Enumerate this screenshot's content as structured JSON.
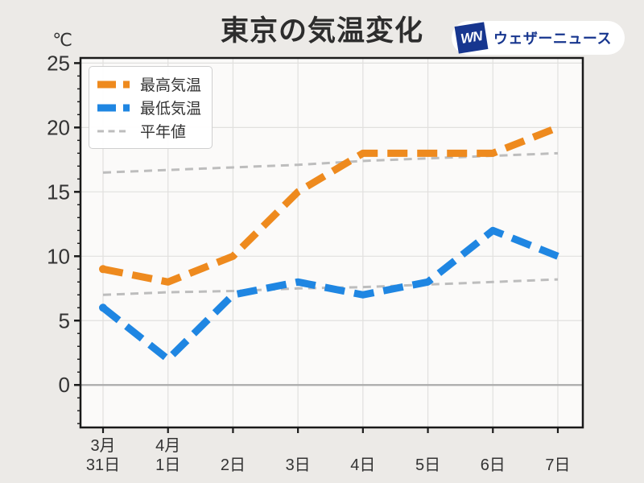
{
  "title": "東京の気温変化",
  "y_axis_unit": "℃",
  "logo": {
    "mark": "WN",
    "text": "ウェザーニュース",
    "brand_color": "#17368F"
  },
  "colors": {
    "page_background": "#ECEAE7",
    "plot_background": "#FBFAF9",
    "axis": "#1A1A1A",
    "grid": "#E1E0DE",
    "zero_line": "#ABABAB",
    "tick_label": "#333333"
  },
  "chart_data": {
    "type": "line",
    "title": "東京の気温変化",
    "x_tick_labels": [
      [
        "3月",
        "31日"
      ],
      [
        "4月",
        "1日"
      ],
      [
        "2日"
      ],
      [
        "3日"
      ],
      [
        "4日"
      ],
      [
        "5日"
      ],
      [
        "6日"
      ],
      [
        "7日"
      ]
    ],
    "yticks": [
      0,
      5,
      10,
      15,
      20,
      25
    ],
    "ylim": [
      -3.3,
      25.4
    ],
    "ylabel": "℃",
    "grid": true,
    "legend_position": "upper-left",
    "series": [
      {
        "name": "最高気温",
        "color": "#EE8A1E",
        "line_style": "thick-dashed",
        "values": [
          9,
          8,
          10,
          15,
          18,
          18,
          18,
          20
        ]
      },
      {
        "name": "最低気温",
        "color": "#1F86E2",
        "line_style": "thick-dashed",
        "values": [
          6,
          2,
          7,
          8,
          7,
          8,
          12,
          10
        ]
      },
      {
        "name": "平年値",
        "color": "#BDBDBD",
        "line_style": "thin-dashed",
        "lines": [
          [
            16.5,
            16.7,
            16.9,
            17.1,
            17.4,
            17.6,
            17.8,
            18.0
          ],
          [
            7.0,
            7.2,
            7.3,
            7.5,
            7.6,
            7.8,
            8.0,
            8.2
          ]
        ]
      }
    ]
  }
}
